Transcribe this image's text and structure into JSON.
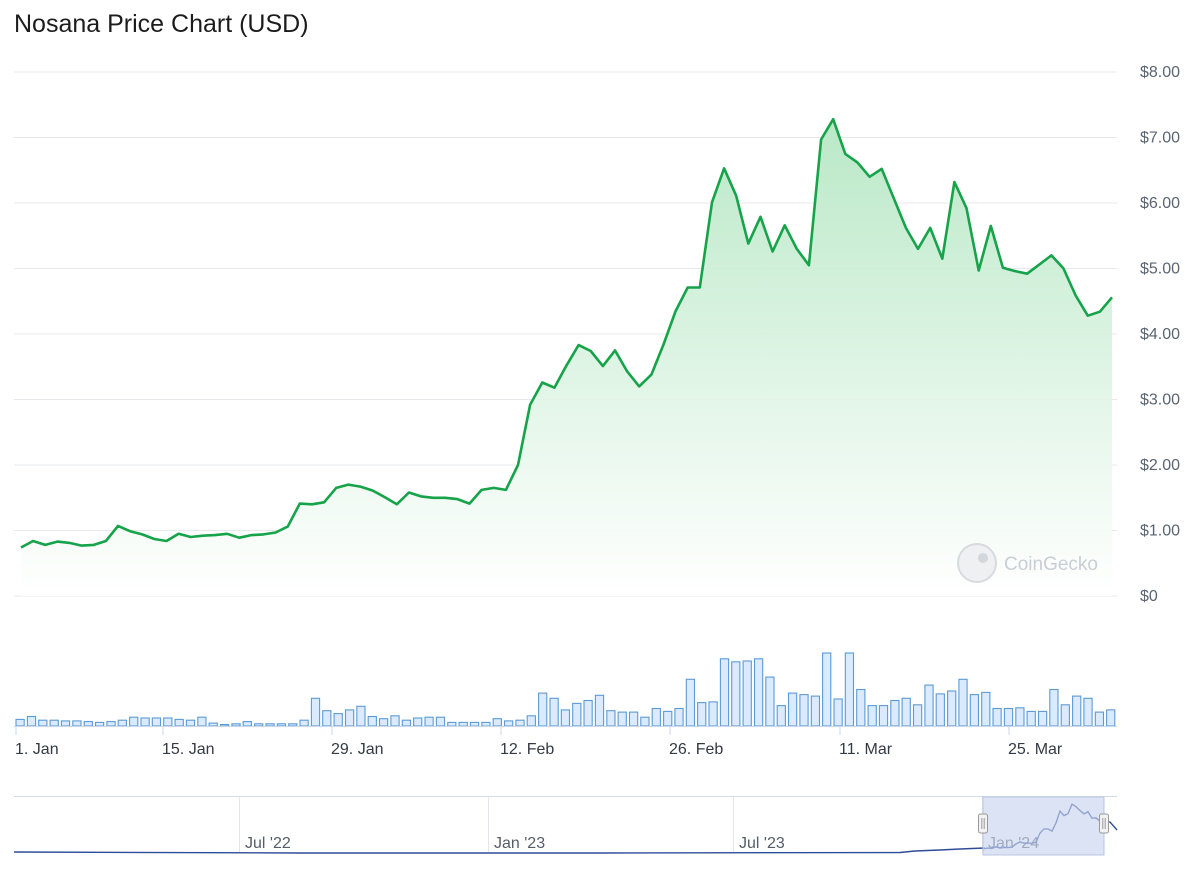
{
  "title": "Nosana Price Chart (USD)",
  "watermark": "CoinGecko",
  "colors": {
    "price_line": "#16a34a",
    "area_top": "#b6e7c4",
    "volume_fill": "#dbeafe",
    "volume_stroke": "#5b9bd5",
    "navigator_line": "#2f4c9b",
    "navigator_mask": "#c9d4ee"
  },
  "chart_data": {
    "type": "line",
    "title": "Nosana Price Chart (USD)",
    "y_ticks": [
      "$0",
      "$1.00",
      "$2.00",
      "$3.00",
      "$4.00",
      "$5.00",
      "$6.00",
      "$7.00",
      "$8.00"
    ],
    "ylim": [
      0,
      8
    ],
    "x_ticks": [
      "1. Jan",
      "15. Jan",
      "29. Jan",
      "12. Feb",
      "26. Feb",
      "11. Mar",
      "25. Mar"
    ],
    "x_range": [
      "2024-01-01",
      "2024-04-01"
    ],
    "grid": true,
    "series": [
      {
        "values": [
          0.74,
          0.84,
          0.78,
          0.83,
          0.81,
          0.77,
          0.78,
          0.84,
          1.07,
          0.99,
          0.94,
          0.87,
          0.84,
          0.95,
          0.9,
          0.92,
          0.93,
          0.95,
          0.89,
          0.93,
          0.94,
          0.97,
          1.06,
          1.41,
          1.4,
          1.43,
          1.65,
          1.7,
          1.67,
          1.61,
          1.51,
          1.4,
          1.58,
          1.52,
          1.5,
          1.5,
          1.48,
          1.41,
          1.62,
          1.65,
          1.62,
          2.0,
          2.92,
          3.26,
          3.18,
          3.52,
          3.83,
          3.74,
          3.51,
          3.75,
          3.43,
          3.2,
          3.38,
          3.84,
          4.35,
          4.71,
          4.71,
          6.01,
          6.53,
          6.11,
          5.38,
          5.79,
          5.26,
          5.66,
          5.3,
          5.05,
          6.97,
          7.28,
          6.75,
          6.62,
          6.4,
          6.52,
          6.07,
          5.62,
          5.3,
          5.62,
          5.15,
          6.32,
          5.92,
          4.97,
          5.65,
          5.01,
          4.96,
          4.92,
          5.06,
          5.2,
          5.0,
          4.59,
          4.28,
          4.34,
          4.56
        ]
      }
    ],
    "volume_bars": [
      0.09,
      0.13,
      0.08,
      0.08,
      0.07,
      0.07,
      0.06,
      0.05,
      0.06,
      0.08,
      0.12,
      0.11,
      0.11,
      0.11,
      0.09,
      0.08,
      0.12,
      0.04,
      0.02,
      0.03,
      0.06,
      0.03,
      0.03,
      0.03,
      0.03,
      0.08,
      0.38,
      0.21,
      0.17,
      0.22,
      0.27,
      0.13,
      0.1,
      0.14,
      0.08,
      0.11,
      0.12,
      0.12,
      0.05,
      0.05,
      0.05,
      0.05,
      0.1,
      0.07,
      0.08,
      0.14,
      0.45,
      0.38,
      0.22,
      0.31,
      0.35,
      0.42,
      0.21,
      0.19,
      0.19,
      0.12,
      0.24,
      0.2,
      0.24,
      0.64,
      0.32,
      0.33,
      0.92,
      0.88,
      0.89,
      0.92,
      0.67,
      0.28,
      0.45,
      0.43,
      0.41,
      1.0,
      0.37,
      1.0,
      0.5,
      0.28,
      0.28,
      0.35,
      0.38,
      0.29,
      0.56,
      0.44,
      0.48,
      0.64,
      0.43,
      0.46,
      0.24,
      0.24,
      0.25,
      0.2,
      0.2,
      0.5,
      0.29,
      0.41,
      0.38,
      0.19,
      0.22
    ],
    "navigator": {
      "x_ticks": [
        "Jul '22",
        "Jan '23",
        "Jul '23",
        "Jan '24"
      ],
      "selected_range": [
        "Jan '24",
        "Apr '24"
      ]
    }
  }
}
